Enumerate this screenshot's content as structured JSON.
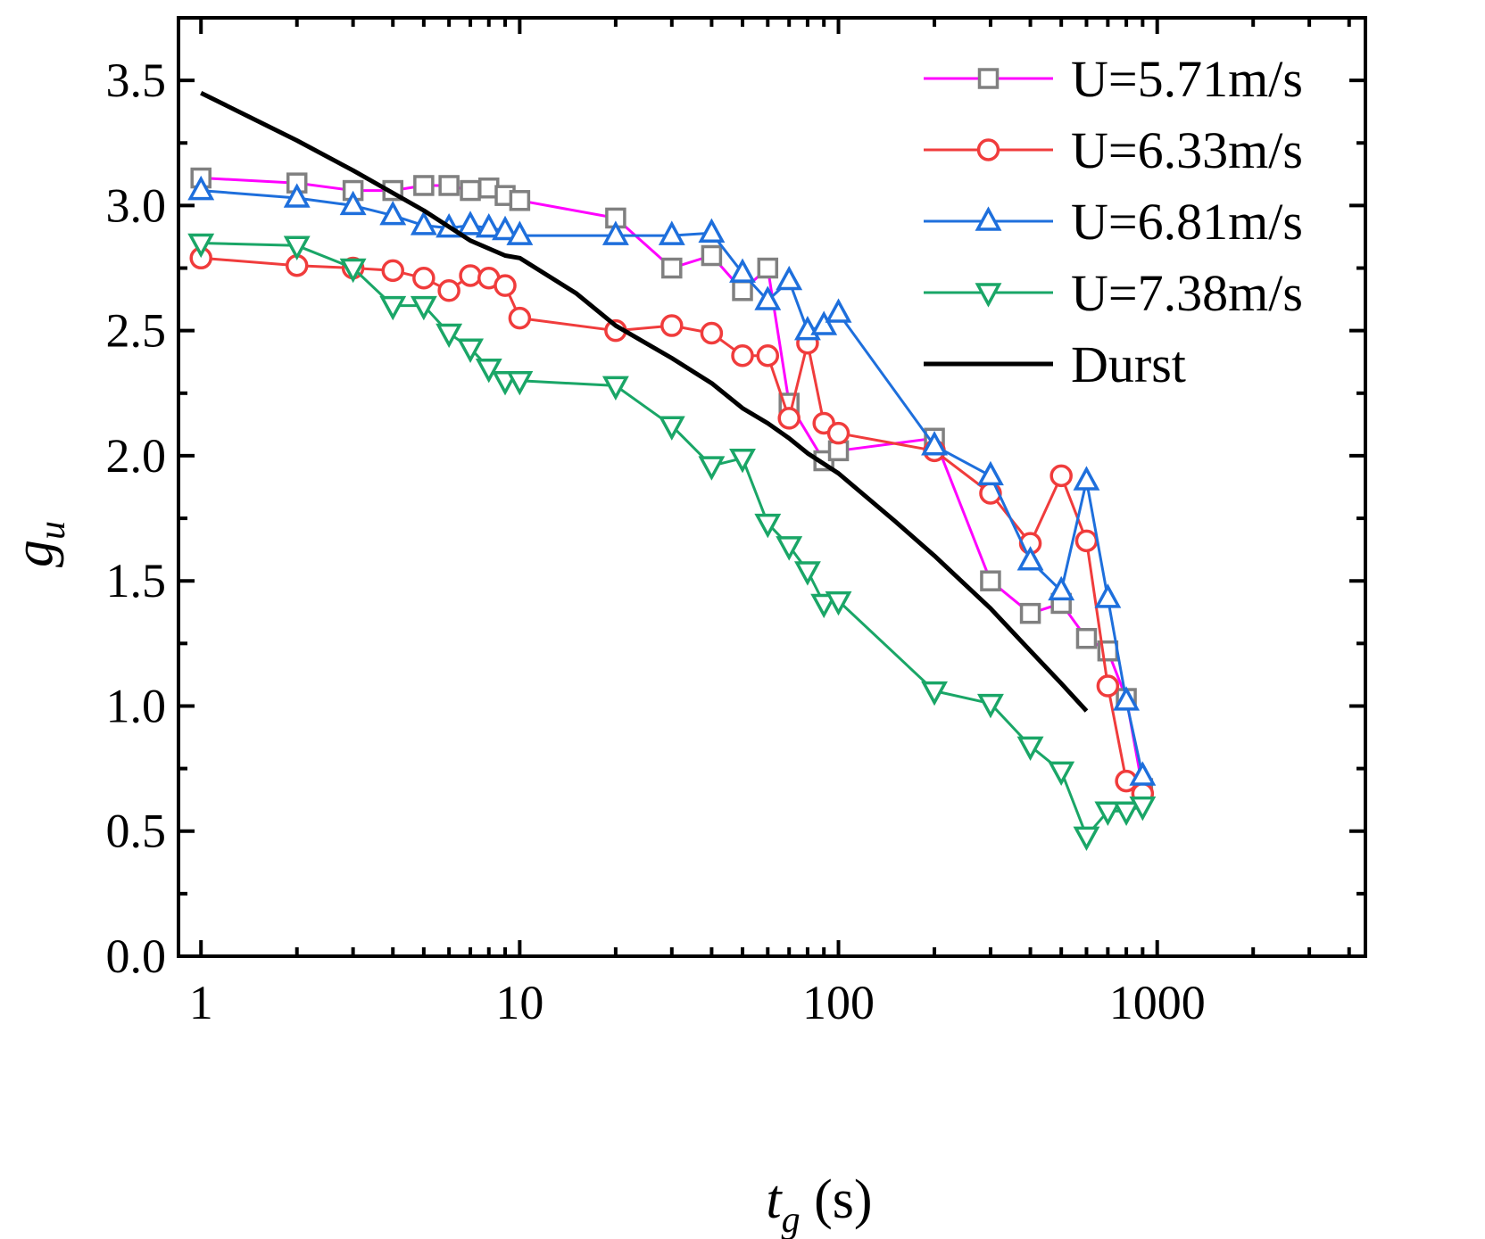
{
  "chart_data": {
    "type": "line",
    "xscale": "log",
    "xlim": [
      0.85,
      4500
    ],
    "ylim": [
      0,
      3.75
    ],
    "xticks": [
      1,
      10,
      100,
      1000
    ],
    "xtick_labels": [
      "1",
      "10",
      "100",
      "1000"
    ],
    "yticks": [
      0.0,
      0.5,
      1.0,
      1.5,
      2.0,
      2.5,
      3.0,
      3.5
    ],
    "ytick_labels": [
      "0.0",
      "0.5",
      "1.0",
      "1.5",
      "2.0",
      "2.5",
      "3.0",
      "3.5"
    ],
    "xlabel": {
      "main": "t",
      "sub": "g",
      "unit": " (s)"
    },
    "ylabel": {
      "main": "g",
      "sub": "u"
    },
    "legend_position": "top-right",
    "grid": false,
    "series": [
      {
        "name": "U=5.71m/s",
        "line_color": "#ff00ff",
        "marker": "square",
        "marker_color": "#808080",
        "x": [
          1,
          2,
          3,
          4,
          5,
          6,
          7,
          8,
          9,
          10,
          20,
          30,
          40,
          50,
          60,
          70,
          90,
          100,
          200,
          300,
          400,
          500,
          600,
          700,
          800,
          900
        ],
        "y": [
          3.11,
          3.09,
          3.06,
          3.06,
          3.08,
          3.08,
          3.06,
          3.07,
          3.04,
          3.02,
          2.95,
          2.75,
          2.8,
          2.66,
          2.75,
          2.21,
          1.98,
          2.02,
          2.07,
          1.5,
          1.37,
          1.41,
          1.27,
          1.22,
          1.03,
          0.67
        ]
      },
      {
        "name": "U=6.33m/s",
        "line_color": "#f03c3c",
        "marker": "circle",
        "marker_color": "#f03c3c",
        "x": [
          1,
          2,
          3,
          4,
          5,
          6,
          7,
          8,
          9,
          10,
          20,
          30,
          40,
          50,
          60,
          70,
          80,
          90,
          100,
          200,
          300,
          400,
          500,
          600,
          700,
          800,
          900
        ],
        "y": [
          2.79,
          2.76,
          2.75,
          2.74,
          2.71,
          2.66,
          2.72,
          2.71,
          2.68,
          2.55,
          2.5,
          2.52,
          2.49,
          2.4,
          2.4,
          2.15,
          2.45,
          2.13,
          2.09,
          2.02,
          1.85,
          1.65,
          1.92,
          1.66,
          1.08,
          0.7,
          0.65
        ]
      },
      {
        "name": "U=6.81m/s",
        "line_color": "#1e6fdc",
        "marker": "triangle-up",
        "marker_color": "#1e6fdc",
        "x": [
          1,
          2,
          3,
          4,
          5,
          6,
          7,
          8,
          9,
          10,
          20,
          30,
          40,
          50,
          60,
          70,
          80,
          90,
          100,
          200,
          300,
          400,
          500,
          600,
          700,
          800,
          900
        ],
        "y": [
          3.06,
          3.03,
          3.0,
          2.96,
          2.92,
          2.91,
          2.92,
          2.91,
          2.9,
          2.88,
          2.88,
          2.88,
          2.89,
          2.73,
          2.62,
          2.7,
          2.5,
          2.52,
          2.57,
          2.04,
          1.92,
          1.58,
          1.46,
          1.9,
          1.43,
          1.02,
          0.72
        ]
      },
      {
        "name": "U=7.38m/s",
        "line_color": "#1aa667",
        "marker": "triangle-down",
        "marker_color": "#1aa667",
        "x": [
          1,
          2,
          3,
          4,
          5,
          6,
          7,
          8,
          9,
          10,
          20,
          30,
          40,
          50,
          60,
          70,
          80,
          90,
          100,
          200,
          300,
          400,
          500,
          600,
          700,
          800,
          900
        ],
        "y": [
          2.85,
          2.84,
          2.75,
          2.6,
          2.6,
          2.49,
          2.43,
          2.35,
          2.3,
          2.3,
          2.28,
          2.12,
          1.96,
          1.99,
          1.73,
          1.64,
          1.54,
          1.41,
          1.42,
          1.06,
          1.01,
          0.84,
          0.74,
          0.48,
          0.58,
          0.58,
          0.6
        ]
      },
      {
        "name": "Durst",
        "line_color": "#000000",
        "marker": "none",
        "marker_color": "#000000",
        "x": [
          1,
          2,
          3,
          5,
          7,
          9,
          10,
          15,
          20,
          30,
          40,
          50,
          60,
          70,
          80,
          100,
          150,
          200,
          300,
          400,
          500,
          600
        ],
        "y": [
          3.45,
          3.26,
          3.14,
          2.98,
          2.86,
          2.8,
          2.79,
          2.65,
          2.52,
          2.39,
          2.29,
          2.19,
          2.13,
          2.07,
          2.01,
          1.93,
          1.74,
          1.6,
          1.39,
          1.22,
          1.09,
          0.98
        ]
      }
    ]
  }
}
